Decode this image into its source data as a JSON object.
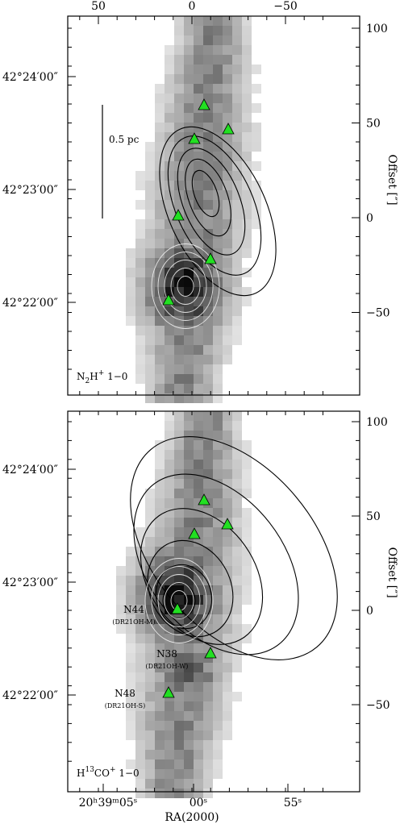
{
  "chart_data": [
    {
      "type": "heatmap",
      "panel": "top",
      "molecule_label_main": "N",
      "molecule_label_sub": "2",
      "molecule_label_sup": "H",
      "molecule_label_sup2": "+",
      "molecule_label_tail": " 1−0",
      "scalebar_label": "0.5 pc",
      "top_axis_ticks": [
        "50",
        "0",
        "−50"
      ],
      "top_axis_values": [
        50,
        0,
        -50
      ],
      "right_axis_ticks": [
        "100",
        "50",
        "0",
        "−50"
      ],
      "right_axis_values": [
        100,
        50,
        0,
        -50
      ],
      "right_axis_label": "Offset [″]",
      "dec_ticks": [
        "42°24′00″",
        "42°23′00″",
        "42°22′00″"
      ],
      "dec_values": [
        100,
        50,
        0
      ],
      "xlim": [
        75,
        -75
      ],
      "ylim": [
        -90,
        105
      ],
      "sources": [
        {
          "x": -5,
          "y": 62
        },
        {
          "x": -15,
          "y": 50
        },
        {
          "x": 0,
          "y": 46
        },
        {
          "x": 6,
          "y": 4
        },
        {
          "x": -8,
          "y": -23
        },
        {
          "x": 12,
          "y": -38
        }
      ]
    },
    {
      "type": "heatmap",
      "panel": "bottom",
      "molecule_label_main": "H",
      "molecule_label_sup": "13",
      "molecule_label_tail2": "CO",
      "molecule_label_sup3": "+",
      "molecule_label_tail": " 1−0",
      "top_axis_ticks": [],
      "right_axis_ticks": [
        "100",
        "50",
        "0",
        "−50"
      ],
      "right_axis_values": [
        100,
        50,
        0,
        -50
      ],
      "right_axis_label": "Offset [″]",
      "dec_ticks": [
        "42°24′00″",
        "42°23′00″",
        "42°22′00″"
      ],
      "dec_values": [
        100,
        50,
        0
      ],
      "ra_ticks": [
        "20ʰ39ᵐ05ˢ",
        "00ˢ",
        "55ˢ"
      ],
      "ra_values": [
        50,
        0,
        -50
      ],
      "xlabel": "RA(2000)",
      "xlim": [
        75,
        -75
      ],
      "ylim": [
        -90,
        105
      ],
      "sources": [
        {
          "x": -5,
          "y": 62,
          "label": "",
          "sublabel": ""
        },
        {
          "x": -15,
          "y": 50,
          "label": "",
          "sublabel": ""
        },
        {
          "x": 0,
          "y": 46,
          "label": "",
          "sublabel": ""
        },
        {
          "x": 6,
          "y": 0,
          "label": "N44",
          "sublabel": "(DR21OH-M)"
        },
        {
          "x": -8,
          "y": -23,
          "label": "N38",
          "sublabel": "(DR21OH-W)"
        },
        {
          "x": 12,
          "y": -42,
          "label": "N48",
          "sublabel": "(DR21OH-S)"
        }
      ]
    }
  ],
  "colors": {
    "triangle": "#22e022",
    "frame": "#000000"
  }
}
